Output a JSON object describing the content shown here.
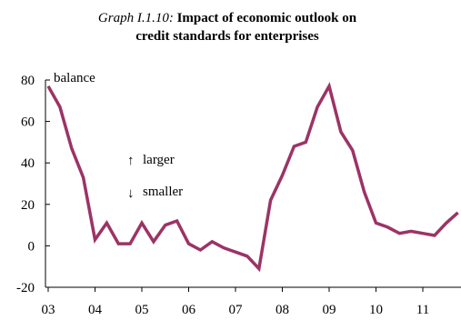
{
  "chart_data": {
    "type": "line",
    "title_italic": "Graph I.1.10:",
    "title_line1_bold": "Impact of economic outlook on",
    "title_line2": "credit standards for enterprises",
    "ylabel": "balance",
    "ylim": [
      -20,
      80
    ],
    "yticks": [
      -20,
      0,
      20,
      40,
      60,
      80
    ],
    "x_tick_labels": [
      "03",
      "04",
      "05",
      "06",
      "07",
      "08",
      "09",
      "10",
      "11"
    ],
    "annotation_up": "larger",
    "annotation_down": "smaller",
    "grid": false,
    "legend": "none",
    "series": [
      {
        "color": "#9c3366",
        "x": [
          "2003Q1",
          "2003Q2",
          "2003Q3",
          "2003Q4",
          "2004Q1",
          "2004Q2",
          "2004Q3",
          "2004Q4",
          "2005Q1",
          "2005Q2",
          "2005Q3",
          "2005Q4",
          "2006Q1",
          "2006Q2",
          "2006Q3",
          "2006Q4",
          "2007Q1",
          "2007Q2",
          "2007Q3",
          "2007Q4",
          "2008Q1",
          "2008Q2",
          "2008Q3",
          "2008Q4",
          "2009Q1",
          "2009Q2",
          "2009Q3",
          "2009Q4",
          "2010Q1",
          "2010Q2",
          "2010Q3",
          "2010Q4",
          "2011Q1",
          "2011Q2",
          "2011Q3",
          "2011Q4"
        ],
        "values": [
          77,
          67,
          47,
          33,
          3,
          11,
          1,
          1,
          11,
          2,
          10,
          12,
          1,
          -2,
          2,
          -1,
          -3,
          -5,
          -11,
          22,
          34,
          48,
          50,
          67,
          77,
          55,
          46,
          26,
          11,
          9,
          6,
          7,
          6,
          5,
          11,
          16
        ]
      }
    ]
  }
}
